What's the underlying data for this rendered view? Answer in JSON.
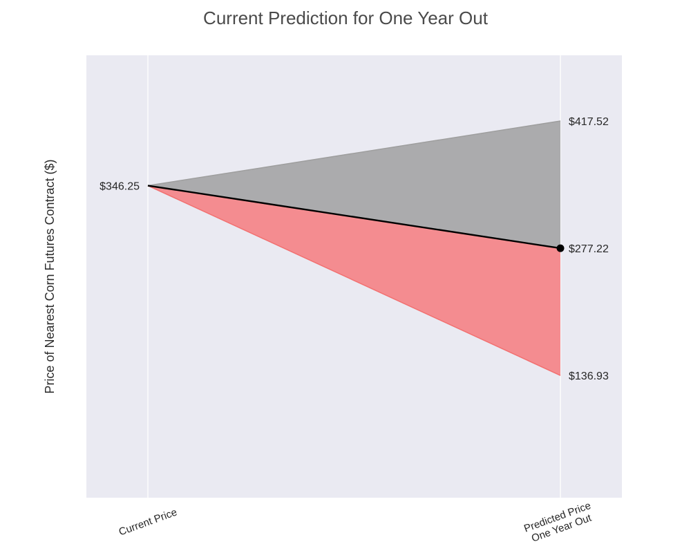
{
  "chart_data": {
    "type": "area",
    "title": "Current Prediction for One Year Out",
    "xlabel": "",
    "ylabel": "Price of Nearest Corn Futures Contract ($)",
    "categories": [
      "Current Price",
      [
        "Predicted Price",
        "One Year Out"
      ]
    ],
    "current_price": 346.25,
    "predicted_price": 277.22,
    "upper_bound": 417.52,
    "lower_bound": 136.93,
    "labels": {
      "current": "$346.25",
      "predicted": "$277.22",
      "upper": "$417.52",
      "lower": "$136.93"
    },
    "ylim": [
      2.14,
      489.94
    ],
    "grid": true,
    "colors": {
      "background": "#EAEAF2",
      "grid": "#FFFFFF",
      "upper_fill": "#ABABAD",
      "upper_edge": "#9E9E9E",
      "lower_fill": "#F48C90",
      "lower_edge": "#F27070",
      "prediction_line": "#000000"
    }
  }
}
